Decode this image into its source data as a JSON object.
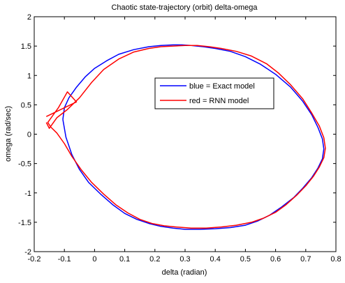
{
  "chart_data": {
    "type": "line",
    "title": "Chaotic state-trajectory (orbit) delta-omega",
    "xlabel": "delta (radian)",
    "ylabel": "omega (rad/sec)",
    "xlim": [
      -0.2,
      0.8
    ],
    "ylim": [
      -2,
      2
    ],
    "xticks": [
      -0.2,
      -0.1,
      0,
      0.1,
      0.2,
      0.3,
      0.4,
      0.5,
      0.6,
      0.7,
      0.8
    ],
    "xtick_labels": [
      "-0.2",
      "-0.1",
      "0",
      "0.1",
      "0.2",
      "0.3",
      "0.4",
      "0.5",
      "0.6",
      "0.7",
      "0.8"
    ],
    "yticks": [
      -2,
      -1.5,
      -1,
      -0.5,
      0,
      0.5,
      1,
      1.5,
      2
    ],
    "ytick_labels": [
      "-2",
      "-1.5",
      "-1",
      "-0.5",
      "0",
      "0.5",
      "1",
      "1.5",
      "2"
    ],
    "grid": false,
    "legend_position": "top-right",
    "series": [
      {
        "name": "blue = Exact model",
        "color": "#0000ff",
        "x": [
          -0.105,
          -0.1,
          -0.085,
          -0.06,
          -0.03,
          0.0,
          0.04,
          0.08,
          0.13,
          0.18,
          0.22,
          0.26,
          0.29,
          0.32,
          0.36,
          0.4,
          0.45,
          0.5,
          0.55,
          0.6,
          0.65,
          0.69,
          0.72,
          0.74,
          0.755,
          0.76,
          0.755,
          0.74,
          0.72,
          0.69,
          0.66,
          0.62,
          0.58,
          0.54,
          0.5,
          0.45,
          0.4,
          0.35,
          0.3,
          0.26,
          0.22,
          0.18,
          0.14,
          0.1,
          0.06,
          0.02,
          -0.02,
          -0.05,
          -0.075,
          -0.095,
          -0.105
        ],
        "y": [
          0.25,
          0.45,
          0.62,
          0.8,
          0.98,
          1.12,
          1.25,
          1.36,
          1.44,
          1.49,
          1.51,
          1.52,
          1.52,
          1.51,
          1.49,
          1.46,
          1.41,
          1.32,
          1.19,
          1.02,
          0.8,
          0.56,
          0.33,
          0.12,
          -0.08,
          -0.25,
          -0.42,
          -0.58,
          -0.74,
          -0.92,
          -1.08,
          -1.24,
          -1.38,
          -1.48,
          -1.55,
          -1.59,
          -1.61,
          -1.62,
          -1.62,
          -1.6,
          -1.57,
          -1.52,
          -1.45,
          -1.35,
          -1.2,
          -1.02,
          -0.82,
          -0.6,
          -0.35,
          -0.05,
          0.25
        ]
      },
      {
        "name": "red = RNN model",
        "color": "#ff0000",
        "x": [
          -0.16,
          -0.15,
          -0.125,
          -0.09,
          -0.05,
          -0.01,
          0.03,
          0.08,
          0.13,
          0.18,
          0.22,
          0.26,
          0.3,
          0.34,
          0.38,
          0.42,
          0.47,
          0.52,
          0.57,
          0.61,
          0.65,
          0.69,
          0.72,
          0.745,
          0.76,
          0.765,
          0.76,
          0.745,
          0.725,
          0.7,
          0.67,
          0.635,
          0.6,
          0.56,
          0.52,
          0.47,
          0.42,
          0.37,
          0.32,
          0.27,
          0.23,
          0.19,
          0.15,
          0.11,
          0.07,
          0.03,
          -0.01,
          -0.045,
          -0.075,
          -0.1,
          -0.125,
          -0.145,
          -0.155,
          -0.12,
          -0.09,
          -0.06,
          -0.16
        ],
        "y": [
          0.2,
          0.1,
          0.28,
          0.42,
          0.62,
          0.88,
          1.1,
          1.28,
          1.4,
          1.46,
          1.49,
          1.5,
          1.51,
          1.51,
          1.49,
          1.46,
          1.41,
          1.33,
          1.2,
          1.04,
          0.84,
          0.6,
          0.36,
          0.14,
          -0.06,
          -0.24,
          -0.4,
          -0.56,
          -0.72,
          -0.88,
          -1.04,
          -1.2,
          -1.33,
          -1.43,
          -1.5,
          -1.55,
          -1.58,
          -1.6,
          -1.6,
          -1.58,
          -1.56,
          -1.52,
          -1.45,
          -1.34,
          -1.2,
          -1.02,
          -0.82,
          -0.6,
          -0.38,
          -0.16,
          0.02,
          0.12,
          0.2,
          0.45,
          0.72,
          0.55,
          0.3
        ]
      }
    ]
  }
}
